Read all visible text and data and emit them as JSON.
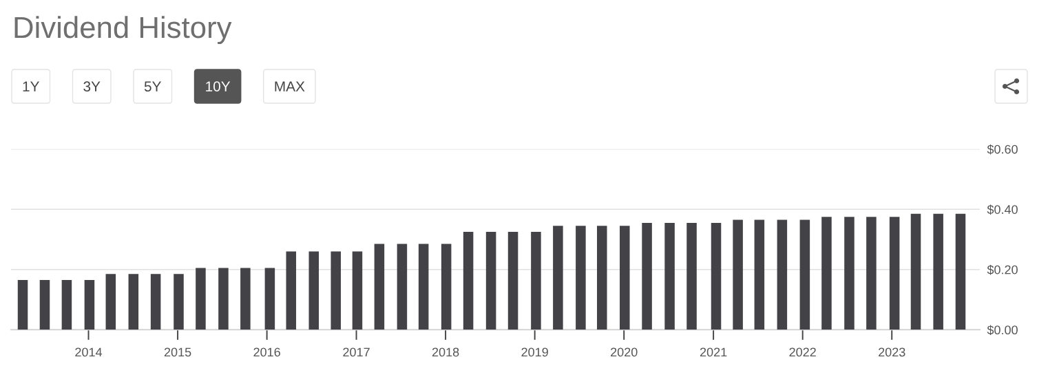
{
  "chart_data": {
    "type": "bar",
    "title": "Dividend History",
    "annotations": [
      "1Y",
      "3Y",
      "5Y",
      "10Y",
      "MAX"
    ],
    "x": [
      "2013-04-07",
      "2013-07-06",
      "2013-10-04",
      "2014-01-05",
      "2014-04-02",
      "2014-07-04",
      "2014-10-03",
      "2015-01-05",
      "2015-04-05",
      "2015-07-07",
      "2015-10-05",
      "2016-01-13",
      "2016-04-09",
      "2016-07-11",
      "2016-10-09",
      "2017-01-05",
      "2017-04-05",
      "2017-07-07",
      "2017-10-03",
      "2018-01-04",
      "2018-04-04",
      "2018-07-06",
      "2018-10-04",
      "2019-01-06",
      "2019-04-06",
      "2019-07-08",
      "2019-10-03",
      "2020-01-04",
      "2020-04-04",
      "2020-07-06",
      "2020-10-04",
      "2021-01-12",
      "2021-04-11",
      "2021-07-08",
      "2021-10-09",
      "2022-01-10",
      "2022-04-09",
      "2022-07-11",
      "2022-10-09",
      "2023-01-12",
      "2023-04-09",
      "2023-07-10",
      "2023-10-09"
    ],
    "values": [
      0.165,
      0.165,
      0.165,
      0.165,
      0.185,
      0.185,
      0.185,
      0.185,
      0.205,
      0.205,
      0.205,
      0.205,
      0.26,
      0.26,
      0.26,
      0.26,
      0.285,
      0.285,
      0.285,
      0.285,
      0.325,
      0.325,
      0.325,
      0.325,
      0.345,
      0.345,
      0.345,
      0.345,
      0.355,
      0.355,
      0.355,
      0.355,
      0.365,
      0.365,
      0.365,
      0.365,
      0.375,
      0.375,
      0.375,
      0.375,
      0.385,
      0.385,
      0.385
    ],
    "color": "#434347",
    "xlim": [
      "2013-02-18",
      "2023-12-27"
    ],
    "xticks": [
      "2014",
      "2015",
      "2016",
      "2017",
      "2018",
      "2019",
      "2020",
      "2021",
      "2022",
      "2023"
    ],
    "ylim": [
      0,
      0.6
    ],
    "yticks": [
      {
        "value": 0,
        "label": "$0.00"
      },
      {
        "value": 0.2,
        "label": "$0.20"
      },
      {
        "value": 0.4,
        "label": "$0.40"
      },
      {
        "value": 0.6,
        "label": "$0.60"
      }
    ],
    "grid": "y"
  }
}
